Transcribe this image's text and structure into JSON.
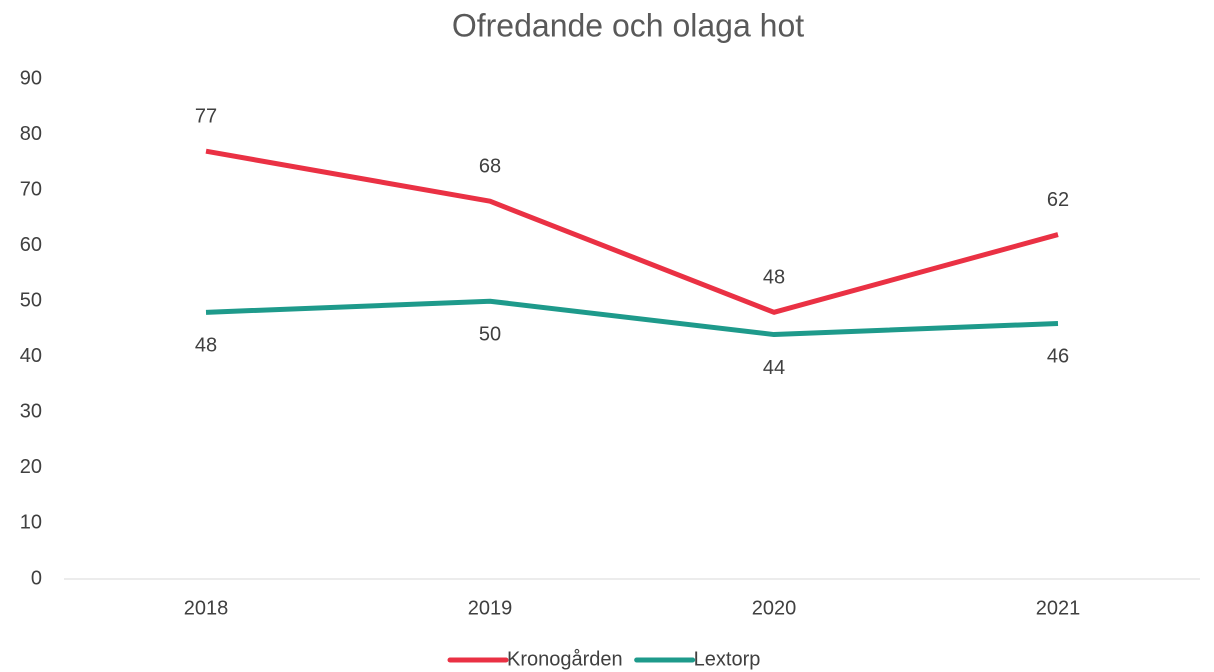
{
  "chart_data": {
    "type": "line",
    "title": "Ofredande och olaga hot",
    "categories": [
      "2018",
      "2019",
      "2020",
      "2021"
    ],
    "series": [
      {
        "name": "Kronogården",
        "color": "#ea3144",
        "values": [
          77,
          68,
          48,
          62
        ],
        "label_position": "above"
      },
      {
        "name": "Lextorp",
        "color": "#1e9a8b",
        "values": [
          48,
          50,
          44,
          46
        ],
        "label_position": "below"
      }
    ],
    "ylim": [
      0,
      90
    ],
    "yticks": [
      0,
      10,
      20,
      30,
      40,
      50,
      60,
      70,
      80,
      90
    ],
    "grid": false,
    "legend": "bottom"
  }
}
